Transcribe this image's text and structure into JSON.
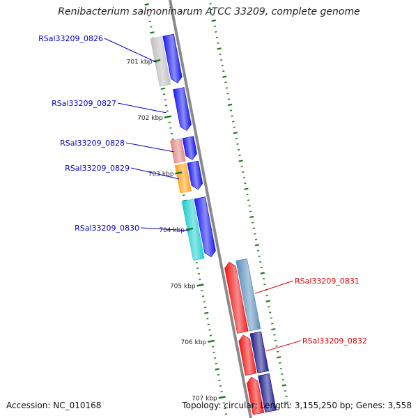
{
  "title": "Renibacterium salmoninarum ATCC 33209, complete genome",
  "footer": {
    "accession": "Accession: NC_010168",
    "summary": "Topology: circular; Length: 3,155,250 bp; Genes: 3,558"
  },
  "colors": {
    "background": "#ffffff",
    "backbone": "#8a8a8a",
    "tick": "#1f7a1f",
    "label_left": "#0000cc",
    "label_right": "#dd0000",
    "scale_text": "#222222"
  },
  "scale": {
    "unit": "kbp",
    "labels": [
      {
        "text": "701 kbp",
        "kbp": 701
      },
      {
        "text": "702 kbp",
        "kbp": 702
      },
      {
        "text": "703 kbp",
        "kbp": 703
      },
      {
        "text": "704 kbp",
        "kbp": 704
      },
      {
        "text": "705 kbp",
        "kbp": 705
      },
      {
        "text": "706 kbp",
        "kbp": 706
      },
      {
        "text": "707 kbp",
        "kbp": 707
      }
    ]
  },
  "genes": [
    {
      "id": "RSal33209_0826",
      "label": "RSal33209_0826",
      "strand": "+",
      "color": "#0000ee",
      "start_kbp": 700.6,
      "end_kbp": 701.45,
      "cog_color": "#b8b8b8",
      "label_side": "left"
    },
    {
      "id": "RSal33209_0827",
      "label": "RSal33209_0827",
      "strand": "+",
      "color": "#0000ee",
      "start_kbp": 701.55,
      "end_kbp": 702.3,
      "cog_color": null,
      "label_side": "left"
    },
    {
      "id": "RSal33209_0828",
      "label": "RSal33209_0828",
      "strand": "+",
      "color": "#0000ee",
      "start_kbp": 702.42,
      "end_kbp": 702.82,
      "cog_color": "#e07a7a",
      "label_side": "left"
    },
    {
      "id": "RSal33209_0829",
      "label": "RSal33209_0829",
      "strand": "+",
      "color": "#0000ee",
      "start_kbp": 702.86,
      "end_kbp": 703.35,
      "cog_color": "#ff9900",
      "label_side": "left"
    },
    {
      "id": "RSal33209_0830",
      "label": "RSal33209_0830",
      "strand": "+",
      "color": "#0000ee",
      "start_kbp": 703.5,
      "end_kbp": 704.55,
      "cog_color": "#00c8c8",
      "label_side": "left"
    },
    {
      "id": "RSal33209_0831",
      "label": "RSal33209_0831",
      "strand": "-",
      "color": "#ee0000",
      "start_kbp": 704.7,
      "end_kbp": 705.95,
      "cog_color": "#4682b4",
      "label_side": "right"
    },
    {
      "id": "RSal33209_0832",
      "label": "RSal33209_0832",
      "strand": "-",
      "color": "#ee0000",
      "start_kbp": 706.0,
      "end_kbp": 706.7,
      "cog_color": "#000080",
      "label_side": "right"
    },
    {
      "id": "next-gene",
      "label": "",
      "strand": "-",
      "color": "#ee0000",
      "start_kbp": 706.75,
      "end_kbp": 707.4,
      "cog_color": "#000080",
      "label_side": "none"
    }
  ]
}
